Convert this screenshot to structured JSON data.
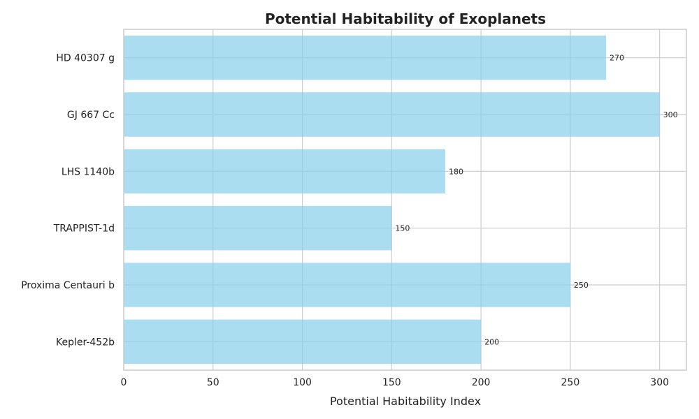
{
  "chart_data": {
    "type": "bar",
    "orientation": "horizontal",
    "title": "Potential Habitability of Exoplanets",
    "xlabel": "Potential Habitability Index",
    "ylabel": "",
    "categories": [
      "Kepler-452b",
      "Proxima Centauri b",
      "TRAPPIST-1d",
      "LHS 1140b",
      "GJ 667 Cc",
      "HD 40307 g"
    ],
    "values": [
      200,
      250,
      150,
      180,
      300,
      270
    ],
    "data_labels": [
      "200",
      "250",
      "150",
      "180",
      "300",
      "270"
    ],
    "x_ticks": [
      0,
      50,
      100,
      150,
      200,
      250,
      300
    ],
    "x_tick_labels": [
      "0",
      "50",
      "100",
      "150",
      "200",
      "250",
      "300"
    ],
    "xlim": [
      0,
      315
    ],
    "grid": true,
    "colors": {
      "bar": "#87ceeb",
      "grid": "#cccccc",
      "spine": "#cccccc",
      "text": "#222222",
      "background": "#ffffff"
    }
  }
}
